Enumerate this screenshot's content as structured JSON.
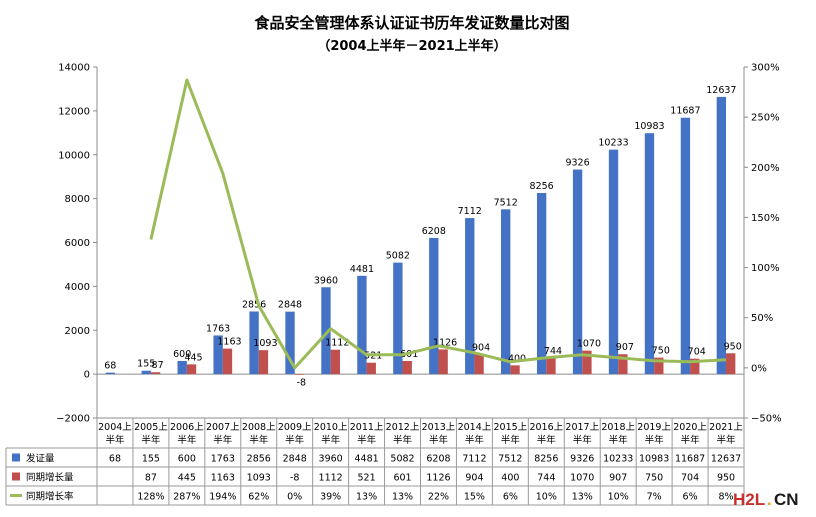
{
  "chart_data": {
    "type": "bar",
    "title": "食品安全管理体系认证证书历年发证数量比对图",
    "subtitle": "（2004上半年－2021上半年）",
    "categories_lines": [
      [
        "2004上",
        "半年"
      ],
      [
        "2005上",
        "半年"
      ],
      [
        "2006上",
        "半年"
      ],
      [
        "2007上",
        "半年"
      ],
      [
        "2008上",
        "半年"
      ],
      [
        "2009上",
        "半年"
      ],
      [
        "2010上",
        "半年"
      ],
      [
        "2011上",
        "半年"
      ],
      [
        "2012上",
        "半年"
      ],
      [
        "2013上",
        "半年"
      ],
      [
        "2014上",
        "半年"
      ],
      [
        "2015上",
        "半年"
      ],
      [
        "2016上",
        "半年"
      ],
      [
        "2017上",
        "半年"
      ],
      [
        "2018上",
        "半年"
      ],
      [
        "2019上",
        "半年"
      ],
      [
        "2020上",
        "半年"
      ],
      [
        "2021上",
        "半年"
      ]
    ],
    "series": [
      {
        "name": "发证量",
        "axis": "left",
        "color": "#4472C4",
        "values": [
          68,
          155,
          600,
          1763,
          2856,
          2848,
          3960,
          4481,
          5082,
          6208,
          7112,
          7512,
          8256,
          9326,
          10233,
          10983,
          11687,
          12637
        ],
        "labels": [
          "68",
          "155",
          "600",
          "1763",
          "2856",
          "2848",
          "3960",
          "4481",
          "5082",
          "6208",
          "7112",
          "7512",
          "8256",
          "9326",
          "10233",
          "10983",
          "11687",
          "12637"
        ]
      },
      {
        "name": "同期增长量",
        "axis": "left",
        "color": "#C0504D",
        "values": [
          null,
          87,
          445,
          1163,
          1093,
          -8,
          1112,
          521,
          601,
          1126,
          904,
          400,
          744,
          1070,
          907,
          750,
          704,
          950
        ],
        "labels": [
          "",
          "87",
          "445",
          "1163",
          "1093",
          "-8",
          "1112",
          "521",
          "601",
          "1126",
          "904",
          "400",
          "744",
          "1070",
          "907",
          "750",
          "704",
          "950"
        ]
      },
      {
        "name": "同期增长率",
        "axis": "right",
        "color": "#9BBB59",
        "values": [
          null,
          128,
          287,
          194,
          62,
          0,
          39,
          13,
          13,
          22,
          15,
          6,
          10,
          13,
          10,
          7,
          6,
          8
        ],
        "labels": [
          "",
          "128%",
          "287%",
          "194%",
          "62%",
          "0%",
          "39%",
          "13%",
          "13%",
          "22%",
          "15%",
          "6%",
          "10%",
          "13%",
          "10%",
          "7%",
          "6%",
          "8%"
        ]
      }
    ],
    "y_left": {
      "min": -2000,
      "max": 14000,
      "ticks": [
        -2000,
        0,
        2000,
        4000,
        6000,
        8000,
        10000,
        12000,
        14000
      ],
      "tick_labels": [
        "−2000",
        "0",
        "2000",
        "4000",
        "6000",
        "8000",
        "10000",
        "12000",
        "14000"
      ]
    },
    "y_right": {
      "min": -50,
      "max": 300,
      "ticks": [
        -50,
        0,
        50,
        100,
        150,
        200,
        250,
        300
      ],
      "tick_labels": [
        "−50%",
        "0%",
        "50%",
        "100%",
        "150%",
        "200%",
        "250%",
        "300%"
      ]
    },
    "grid": false,
    "legend": "data-table"
  },
  "watermark": {
    "text_main": "H2L",
    "text_dot": ".",
    "text_tld": "CN",
    "color_main": "#c9302c",
    "color_dot": "#f0a020",
    "color_tld": "#1a1a1a"
  }
}
